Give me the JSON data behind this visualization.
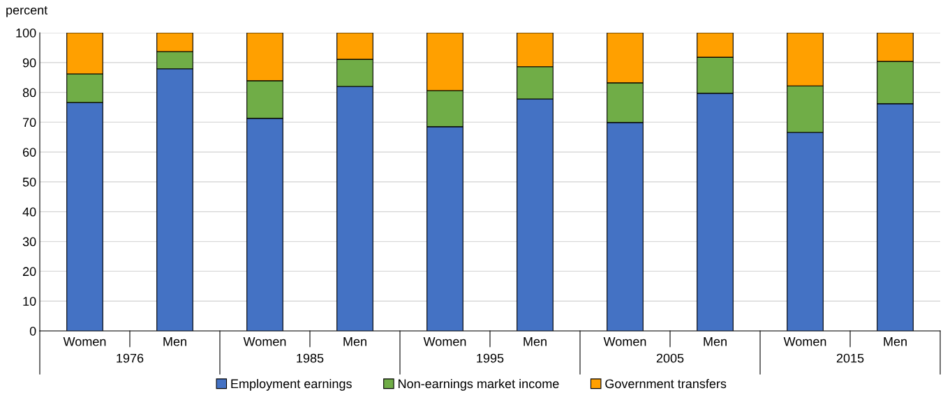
{
  "chart_data": {
    "type": "bar",
    "stacked": true,
    "ylabel": "percent",
    "categories": [
      "Women",
      "Men",
      "Women",
      "Men",
      "Women",
      "Men",
      "Women",
      "Men",
      "Women",
      "Men"
    ],
    "annotations": [
      "1976",
      "1985",
      "1995",
      "2005",
      "2015"
    ],
    "series": [
      {
        "name": "Employment earnings",
        "color": "#4472c4",
        "values": [
          76.6,
          87.9,
          71.3,
          82.0,
          68.5,
          77.8,
          69.9,
          79.7,
          66.6,
          76.2
        ]
      },
      {
        "name": "Non-earnings market income",
        "color": "#70ad47",
        "values": [
          9.6,
          5.8,
          12.6,
          9.1,
          12.1,
          10.8,
          13.3,
          12.1,
          15.6,
          14.2
        ]
      },
      {
        "name": "Government transfers",
        "color": "#ffa000",
        "values": [
          13.8,
          6.3,
          16.1,
          8.9,
          19.4,
          11.4,
          16.8,
          8.2,
          17.8,
          9.6
        ]
      }
    ],
    "ylim": [
      0,
      100
    ],
    "yticks": [
      0,
      10,
      20,
      30,
      40,
      50,
      60,
      70,
      80,
      90,
      100
    ],
    "grid": "y",
    "legend": "bottom"
  }
}
